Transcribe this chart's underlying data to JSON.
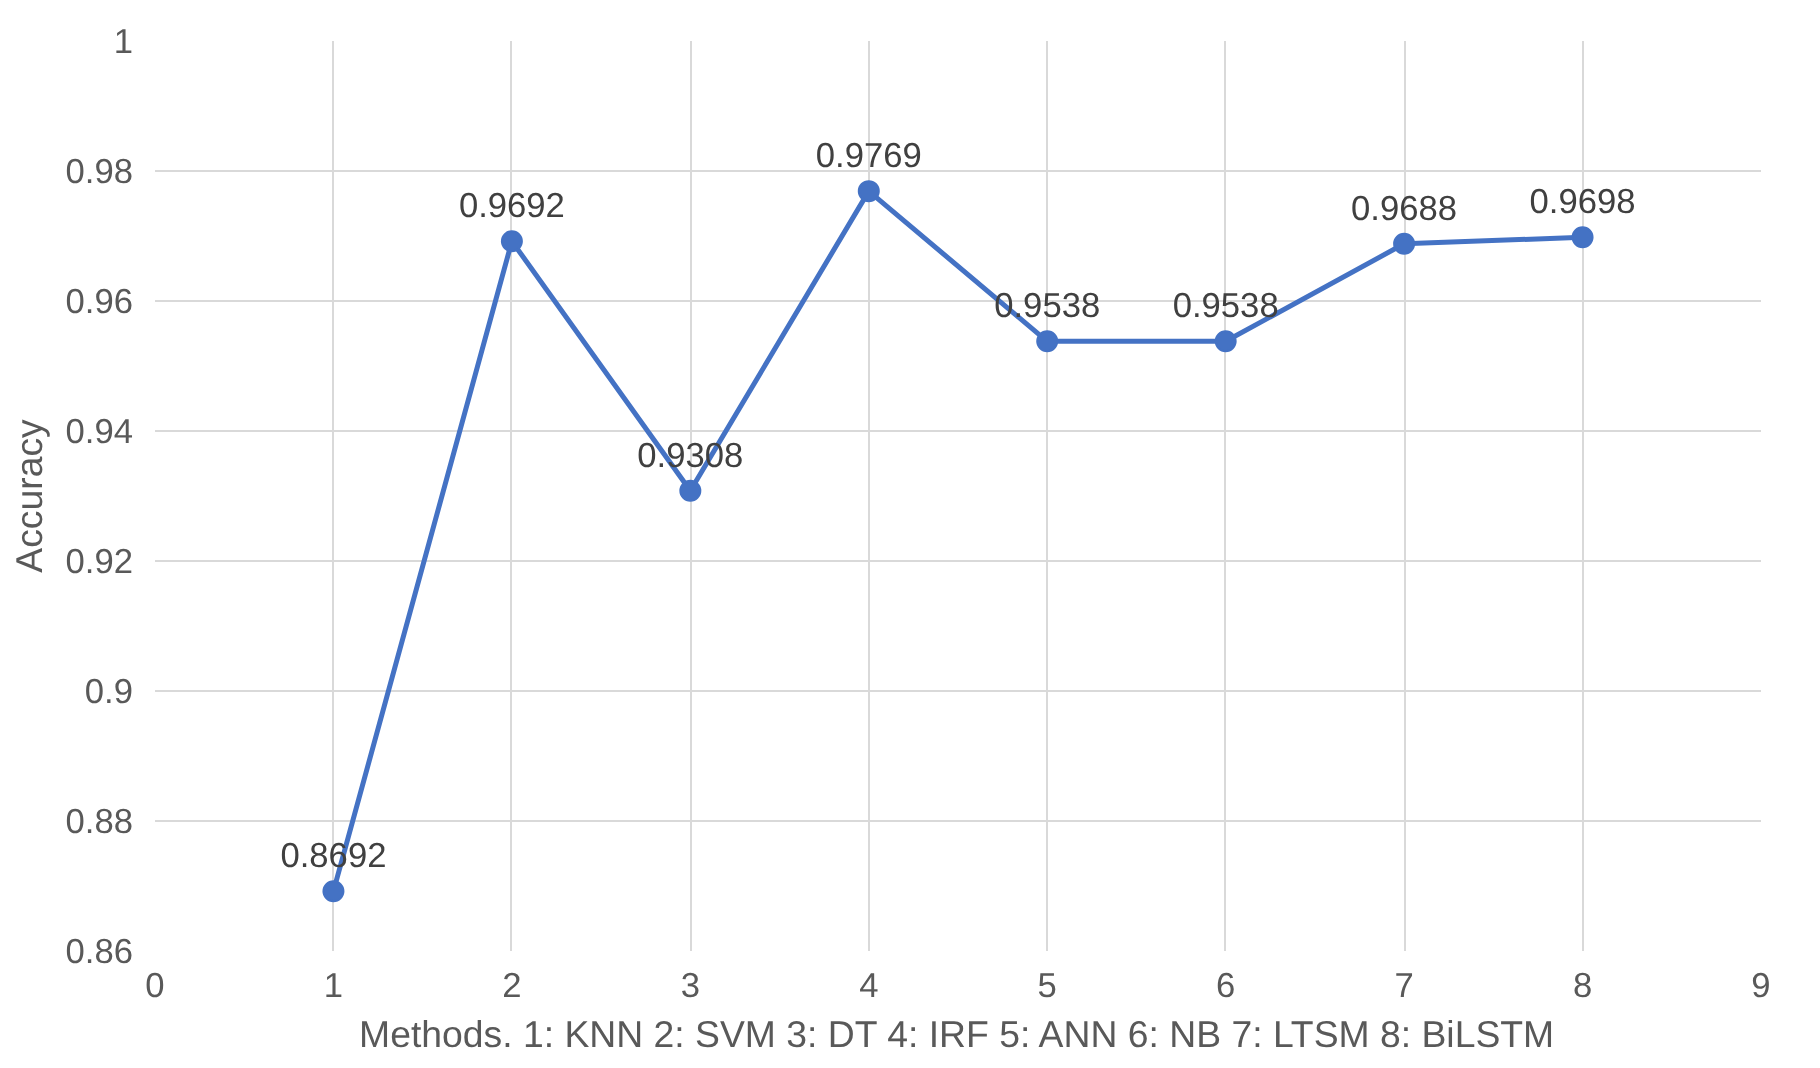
{
  "chart_data": {
    "type": "line",
    "xlabel": "Methods. 1: KNN 2: SVM 3: DT 4: IRF 5: ANN 6: NB 7: LTSM 8: BiLSTM",
    "ylabel": "Accuracy",
    "x": [
      1,
      2,
      3,
      4,
      5,
      6,
      7,
      8
    ],
    "series": [
      {
        "color": "#4472c4",
        "values": [
          0.8692,
          0.9692,
          0.9308,
          0.9769,
          0.9538,
          0.9538,
          0.9688,
          0.9698
        ]
      }
    ],
    "xlim": [
      0,
      9
    ],
    "xticks": [
      0,
      1,
      2,
      3,
      4,
      5,
      6,
      7,
      8,
      9
    ],
    "ylim": [
      0.86,
      1
    ],
    "yticks": [
      0.86,
      0.88,
      0.9,
      0.92,
      0.94,
      0.96,
      0.98,
      1
    ],
    "grid": true,
    "marker": "circle",
    "line_style": "solid",
    "data_labels": true
  }
}
